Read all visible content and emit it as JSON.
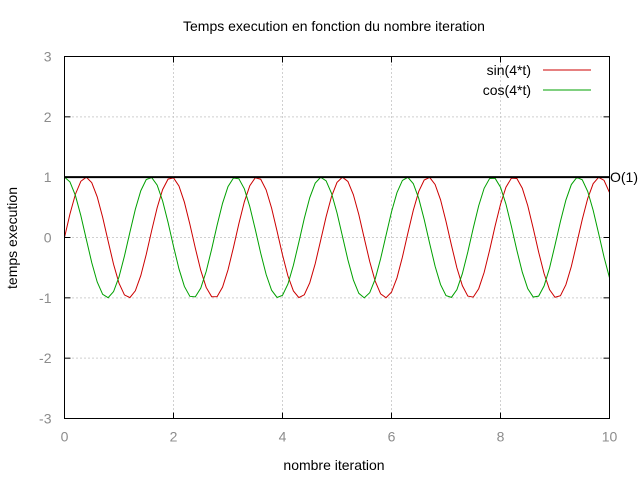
{
  "chart_data": {
    "type": "line",
    "title": "Temps execution en fonction du nombre iteration",
    "xlabel": "nombre iteration",
    "ylabel": "temps execution",
    "xlim": [
      0,
      10
    ],
    "ylim": [
      -3,
      3
    ],
    "x_ticks": [
      "0",
      "2",
      "4",
      "6",
      "8",
      "10"
    ],
    "y_ticks": [
      "-3",
      "-2",
      "-1",
      "0",
      "1",
      "2",
      "3"
    ],
    "grid": true,
    "legend_position": "top-right",
    "series": [
      {
        "name": "sin(4*t)",
        "color": "#cc0000",
        "x": [
          0.0,
          0.1,
          0.2,
          0.3,
          0.4,
          0.5,
          0.6,
          0.7,
          0.8,
          0.9,
          1.0,
          1.1,
          1.2,
          1.3,
          1.4,
          1.5,
          1.6,
          1.7,
          1.8,
          1.9,
          2.0,
          2.1,
          2.2,
          2.3,
          2.4,
          2.5,
          2.6,
          2.7,
          2.8,
          2.9,
          3.0,
          3.1,
          3.2,
          3.3,
          3.4,
          3.5,
          3.6,
          3.7,
          3.8,
          3.9,
          4.0,
          4.1,
          4.2,
          4.3,
          4.4,
          4.5,
          4.6,
          4.7,
          4.8,
          4.9,
          5.0,
          5.1,
          5.2,
          5.3,
          5.4,
          5.5,
          5.6,
          5.7,
          5.8,
          5.9,
          6.0,
          6.1,
          6.2,
          6.3,
          6.4,
          6.5,
          6.6,
          6.7,
          6.8,
          6.9,
          7.0,
          7.1,
          7.2,
          7.3,
          7.4,
          7.5,
          7.6,
          7.7,
          7.8,
          7.9,
          8.0,
          8.1,
          8.2,
          8.3,
          8.4,
          8.5,
          8.6,
          8.7,
          8.8,
          8.9,
          9.0,
          9.1,
          9.2,
          9.3,
          9.4,
          9.5,
          9.6,
          9.7,
          9.8,
          9.9,
          10.0
        ],
        "y": [
          0.0,
          0.389,
          0.717,
          0.932,
          1.0,
          0.909,
          0.675,
          0.335,
          -0.058,
          -0.443,
          -0.757,
          -0.952,
          -0.996,
          -0.883,
          -0.631,
          -0.279,
          0.117,
          0.494,
          0.794,
          0.968,
          0.989,
          0.855,
          0.585,
          0.222,
          -0.175,
          -0.544,
          -0.828,
          -0.981,
          -0.979,
          -0.823,
          -0.537,
          -0.165,
          0.232,
          0.592,
          0.859,
          0.99,
          0.966,
          0.789,
          0.487,
          0.106,
          -0.288,
          -0.638,
          -0.886,
          -0.996,
          -0.949,
          -0.751,
          -0.435,
          -0.047,
          0.344,
          0.681,
          0.913,
          1.0,
          0.929,
          0.71,
          0.381,
          -0.012,
          -0.397,
          -0.722,
          -0.934,
          -0.999,
          -0.906,
          -0.67,
          -0.325,
          0.07,
          0.451,
          0.763,
          0.953,
          0.996,
          0.879,
          0.625,
          0.268,
          -0.128,
          -0.503,
          -0.798,
          -0.971,
          -0.988,
          -0.849,
          -0.578,
          -0.211,
          0.186,
          0.552,
          0.833,
          0.984,
          0.978,
          0.817,
          0.529,
          0.154,
          -0.242,
          -0.599,
          -0.864,
          -0.991,
          -0.965,
          -0.782,
          -0.479,
          -0.094,
          0.298,
          0.646,
          0.892,
          0.997,
          0.947,
          0.745
        ]
      },
      {
        "name": "cos(4*t)",
        "color": "#00a000",
        "x": [
          0.0,
          0.1,
          0.2,
          0.3,
          0.4,
          0.5,
          0.6,
          0.7,
          0.8,
          0.9,
          1.0,
          1.1,
          1.2,
          1.3,
          1.4,
          1.5,
          1.6,
          1.7,
          1.8,
          1.9,
          2.0,
          2.1,
          2.2,
          2.3,
          2.4,
          2.5,
          2.6,
          2.7,
          2.8,
          2.9,
          3.0,
          3.1,
          3.2,
          3.3,
          3.4,
          3.5,
          3.6,
          3.7,
          3.8,
          3.9,
          4.0,
          4.1,
          4.2,
          4.3,
          4.4,
          4.5,
          4.6,
          4.7,
          4.8,
          4.9,
          5.0,
          5.1,
          5.2,
          5.3,
          5.4,
          5.5,
          5.6,
          5.7,
          5.8,
          5.9,
          6.0,
          6.1,
          6.2,
          6.3,
          6.4,
          6.5,
          6.6,
          6.7,
          6.8,
          6.9,
          7.0,
          7.1,
          7.2,
          7.3,
          7.4,
          7.5,
          7.6,
          7.7,
          7.8,
          7.9,
          8.0,
          8.1,
          8.2,
          8.3,
          8.4,
          8.5,
          8.6,
          8.7,
          8.8,
          8.9,
          9.0,
          9.1,
          9.2,
          9.3,
          9.4,
          9.5,
          9.6,
          9.7,
          9.8,
          9.9,
          10.0
        ],
        "y": [
          1.0,
          0.921,
          0.697,
          0.362,
          -0.029,
          -0.416,
          -0.737,
          -0.942,
          -0.998,
          -0.897,
          -0.654,
          -0.307,
          0.087,
          0.468,
          0.775,
          0.96,
          0.993,
          0.869,
          0.607,
          0.251,
          -0.146,
          -0.519,
          -0.811,
          -0.975,
          -0.984,
          -0.839,
          -0.561,
          -0.194,
          0.203,
          0.567,
          0.844,
          0.986,
          0.973,
          0.807,
          0.512,
          0.136,
          -0.259,
          -0.614,
          -0.874,
          -0.994,
          -0.958,
          -0.77,
          -0.46,
          -0.078,
          0.316,
          0.66,
          0.9,
          0.999,
          0.939,
          0.731,
          0.408,
          0.02,
          -0.371,
          -0.703,
          -0.925,
          -1.0,
          -0.916,
          -0.691,
          -0.353,
          0.038,
          0.424,
          0.742,
          0.946,
          0.998,
          0.893,
          0.647,
          0.298,
          -0.097,
          -0.476,
          -0.78,
          -0.963,
          -0.992,
          -0.864,
          -0.6,
          -0.241,
          0.155,
          0.527,
          0.816,
          0.977,
          0.983,
          0.834,
          0.553,
          0.185,
          -0.212,
          -0.575,
          -0.848,
          -0.987,
          -0.972,
          -0.802,
          -0.505,
          -0.127,
          0.268,
          0.621,
          0.878,
          0.995,
          0.956,
          0.764,
          0.452,
          0.068,
          -0.325,
          -0.667
        ]
      }
    ],
    "reference_line": {
      "label": "O(1)",
      "y": 1,
      "color": "#000000"
    }
  }
}
